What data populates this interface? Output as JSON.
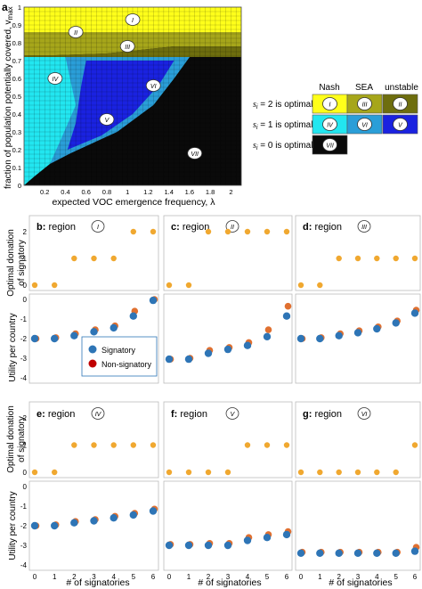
{
  "figure": {
    "panel_a": {
      "letter": "a",
      "ylabel": "fraction of population potentially covered, v",
      "ylabel_sub": "max",
      "xlabel": "expected VOC emergence frequency, λ",
      "xticks": [
        "0.2",
        "0.4",
        "0.6",
        "0.8",
        "1",
        "1.2",
        "1.4",
        "1.6",
        "1.8",
        "2"
      ],
      "yticks": [
        "0",
        "0.1",
        "0.2",
        "0.3",
        "0.4",
        "0.5",
        "0.6",
        "0.7",
        "0.8",
        "0.9",
        "1"
      ],
      "region_labels": [
        "I",
        "II",
        "III",
        "IV",
        "V",
        "VI",
        "VII"
      ]
    },
    "legend_a": {
      "col_headers": [
        "Nash",
        "SEA",
        "unstable"
      ],
      "rows": [
        {
          "label": "s",
          "sub": "i",
          "rest": " = 2 is optimal",
          "cells": [
            "I",
            "III",
            "II"
          ]
        },
        {
          "label": "s",
          "sub": "i",
          "rest": " = 1 is optimal",
          "cells": [
            "IV",
            "VI",
            "V"
          ]
        },
        {
          "label": "s",
          "sub": "i",
          "rest": " = 0 is optimal",
          "cells": [
            "VII"
          ]
        }
      ],
      "colors": {
        "s2_nash": "#ffff1a",
        "s2_sea": "#a6a61a",
        "s2_unstable": "#6e6e0e",
        "s1_nash": "#22e6f0",
        "s1_sea": "#2a9ed8",
        "s1_unstable": "#1a22e0",
        "s0": "#0a0a0a"
      }
    },
    "grid_labels": {
      "top_ylabel_line1": "Optimal donation",
      "top_ylabel_line2": "of signatory",
      "bottom_ylabel": "Utility per country",
      "xlabel": "# of signatories",
      "xticks": [
        "0",
        "1",
        "2",
        "3",
        "4",
        "5",
        "6"
      ],
      "top_yticks": [
        "0",
        "1",
        "2"
      ],
      "bottom_yticks": [
        "0",
        "-1",
        "-2",
        "-3",
        "-4"
      ]
    },
    "legend_b": {
      "signatory": "Signatory",
      "nonsignatory": "Non-signatory",
      "signatory_color": "#2e75b6",
      "nonsignatory_color": "#c00000"
    },
    "panel_titles": [
      {
        "letter": "b",
        "text": "region",
        "numeral": "I"
      },
      {
        "letter": "c",
        "text": "region",
        "numeral": "II"
      },
      {
        "letter": "d",
        "text": "region",
        "numeral": "III"
      },
      {
        "letter": "e",
        "text": "region",
        "numeral": "IV"
      },
      {
        "letter": "f",
        "text": "region",
        "numeral": "V"
      },
      {
        "letter": "g",
        "text": "region",
        "numeral": "VI"
      }
    ]
  },
  "chart_data": [
    {
      "panel": "b",
      "type": "scatter",
      "x": [
        0,
        1,
        2,
        3,
        4,
        5,
        6
      ],
      "donation": [
        0,
        0,
        1,
        1,
        1,
        2,
        2
      ],
      "utility_signatory": [
        -2.0,
        -2.0,
        -1.85,
        -1.65,
        -1.45,
        -0.85,
        -0.05
      ],
      "utility_nonsignatory": [
        -2.0,
        -1.95,
        -1.75,
        -1.55,
        -1.35,
        -0.6,
        0.0
      ]
    },
    {
      "panel": "c",
      "type": "scatter",
      "x": [
        0,
        1,
        2,
        3,
        4,
        5,
        6
      ],
      "donation": [
        0,
        0,
        2,
        2,
        2,
        2,
        2
      ],
      "utility_signatory": [
        -3.05,
        -3.05,
        -2.75,
        -2.55,
        -2.35,
        -1.9,
        -0.85
      ],
      "utility_nonsignatory": [
        -3.05,
        -3.0,
        -2.6,
        -2.45,
        -2.2,
        -1.55,
        -0.35
      ]
    },
    {
      "panel": "d",
      "type": "scatter",
      "x": [
        0,
        1,
        2,
        3,
        4,
        5,
        6
      ],
      "donation": [
        0,
        0,
        1,
        1,
        1,
        1,
        1
      ],
      "utility_signatory": [
        -2.0,
        -2.0,
        -1.85,
        -1.7,
        -1.5,
        -1.2,
        -0.7
      ],
      "utility_nonsignatory": [
        -2.0,
        -1.95,
        -1.75,
        -1.6,
        -1.4,
        -1.1,
        -0.55
      ]
    },
    {
      "panel": "e",
      "type": "scatter",
      "x": [
        0,
        1,
        2,
        3,
        4,
        5,
        6
      ],
      "donation": [
        0,
        0,
        1,
        1,
        1,
        1,
        1
      ],
      "utility_signatory": [
        -2.0,
        -2.0,
        -1.85,
        -1.75,
        -1.6,
        -1.45,
        -1.25
      ],
      "utility_nonsignatory": [
        -2.0,
        -1.95,
        -1.78,
        -1.68,
        -1.52,
        -1.37,
        -1.15
      ]
    },
    {
      "panel": "f",
      "type": "scatter",
      "x": [
        0,
        1,
        2,
        3,
        4,
        5,
        6
      ],
      "donation": [
        0,
        0,
        0,
        0,
        1,
        1,
        1
      ],
      "utility_signatory": [
        -3.0,
        -3.0,
        -3.0,
        -3.0,
        -2.75,
        -2.6,
        -2.45
      ],
      "utility_nonsignatory": [
        -2.95,
        -2.95,
        -2.9,
        -2.9,
        -2.6,
        -2.45,
        -2.3
      ]
    },
    {
      "panel": "g",
      "type": "scatter",
      "x": [
        0,
        1,
        2,
        3,
        4,
        5,
        6
      ],
      "donation": [
        0,
        0,
        0,
        0,
        0,
        0,
        1
      ],
      "utility_signatory": [
        -3.4,
        -3.4,
        -3.4,
        -3.4,
        -3.4,
        -3.4,
        -3.3
      ],
      "utility_nonsignatory": [
        -3.35,
        -3.35,
        -3.35,
        -3.35,
        -3.35,
        -3.35,
        -3.1
      ]
    }
  ]
}
